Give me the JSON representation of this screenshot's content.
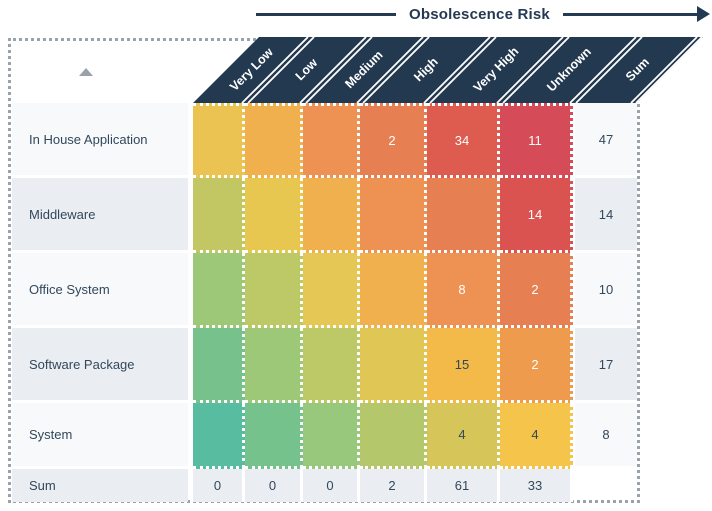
{
  "header": {
    "title": "Obsolescence Risk"
  },
  "columns": [
    "Very Low",
    "Low",
    "Medium",
    "High",
    "Very High",
    "Unknown",
    "Sum"
  ],
  "rows": [
    {
      "label": "In House Application",
      "sum": "47",
      "cells": [
        {
          "value": "",
          "bg": "#eac353",
          "fg": "#33475b"
        },
        {
          "value": "",
          "bg": "#efb04d",
          "fg": "#33475b"
        },
        {
          "value": "",
          "bg": "#ed9252",
          "fg": "#ffffff"
        },
        {
          "value": "2",
          "bg": "#e67f51",
          "fg": "#ffffff"
        },
        {
          "value": "34",
          "bg": "#de5b50",
          "fg": "#ffffff"
        },
        {
          "value": "11",
          "bg": "#d54b57",
          "fg": "#ffffff"
        }
      ]
    },
    {
      "label": "Middleware",
      "sum": "14",
      "cells": [
        {
          "value": "",
          "bg": "#c2c763",
          "fg": "#33475b"
        },
        {
          "value": "",
          "bg": "#e8c751",
          "fg": "#33475b"
        },
        {
          "value": "",
          "bg": "#efb04d",
          "fg": "#33475b"
        },
        {
          "value": "",
          "bg": "#ed9252",
          "fg": "#ffffff"
        },
        {
          "value": "",
          "bg": "#e67f51",
          "fg": "#ffffff"
        },
        {
          "value": "14",
          "bg": "#da5350",
          "fg": "#ffffff"
        }
      ]
    },
    {
      "label": "Office System",
      "sum": "10",
      "cells": [
        {
          "value": "",
          "bg": "#9dc877",
          "fg": "#33475b"
        },
        {
          "value": "",
          "bg": "#bdc866",
          "fg": "#33475b"
        },
        {
          "value": "",
          "bg": "#e4c754",
          "fg": "#33475b"
        },
        {
          "value": "",
          "bg": "#efb04d",
          "fg": "#33475b"
        },
        {
          "value": "8",
          "bg": "#ed9252",
          "fg": "#ffffff"
        },
        {
          "value": "2",
          "bg": "#e67f51",
          "fg": "#ffffff"
        }
      ]
    },
    {
      "label": "Software Package",
      "sum": "17",
      "cells": [
        {
          "value": "",
          "bg": "#77c28c",
          "fg": "#33475b"
        },
        {
          "value": "",
          "bg": "#9dc877",
          "fg": "#33475b"
        },
        {
          "value": "",
          "bg": "#bdc866",
          "fg": "#33475b"
        },
        {
          "value": "",
          "bg": "#e0c655",
          "fg": "#33475b"
        },
        {
          "value": "15",
          "bg": "#f3ba49",
          "fg": "#33475b"
        },
        {
          "value": "2",
          "bg": "#ef9b4e",
          "fg": "#ffffff"
        }
      ]
    },
    {
      "label": "System",
      "sum": "8",
      "cells": [
        {
          "value": "",
          "bg": "#58bda0",
          "fg": "#33475b"
        },
        {
          "value": "",
          "bg": "#75c28d",
          "fg": "#33475b"
        },
        {
          "value": "",
          "bg": "#97c87b",
          "fg": "#33475b"
        },
        {
          "value": "",
          "bg": "#b5c76b",
          "fg": "#33475b"
        },
        {
          "value": "4",
          "bg": "#d6c65a",
          "fg": "#33475b"
        },
        {
          "value": "4",
          "bg": "#f5c44b",
          "fg": "#33475b"
        }
      ]
    }
  ],
  "sum_row": {
    "label": "Sum",
    "cells": [
      "0",
      "0",
      "0",
      "2",
      "61",
      "33"
    ]
  },
  "colors": {
    "band": "#233950",
    "title": "#243a52",
    "text": "#33475b",
    "row_bg_light": "#f7f9fb",
    "row_bg_dark": "#eaeef2",
    "panel_dots": "#9aa2ab"
  },
  "chart_data": {
    "type": "heatmap",
    "title": "Obsolescence Risk",
    "x_categories": [
      "Very Low",
      "Low",
      "Medium",
      "High",
      "Very High",
      "Unknown"
    ],
    "y_categories": [
      "In House Application",
      "Middleware",
      "Office System",
      "Software Package",
      "System"
    ],
    "values": [
      [
        0,
        0,
        0,
        2,
        34,
        11
      ],
      [
        0,
        0,
        0,
        0,
        0,
        14
      ],
      [
        0,
        0,
        0,
        0,
        8,
        2
      ],
      [
        0,
        0,
        0,
        0,
        15,
        2
      ],
      [
        0,
        0,
        0,
        0,
        4,
        4
      ]
    ],
    "row_sums": [
      47,
      14,
      10,
      17,
      8
    ],
    "col_sums": [
      0,
      0,
      0,
      2,
      61,
      33
    ],
    "legend_position": "none",
    "grid": "dotted-white-cell-borders"
  }
}
